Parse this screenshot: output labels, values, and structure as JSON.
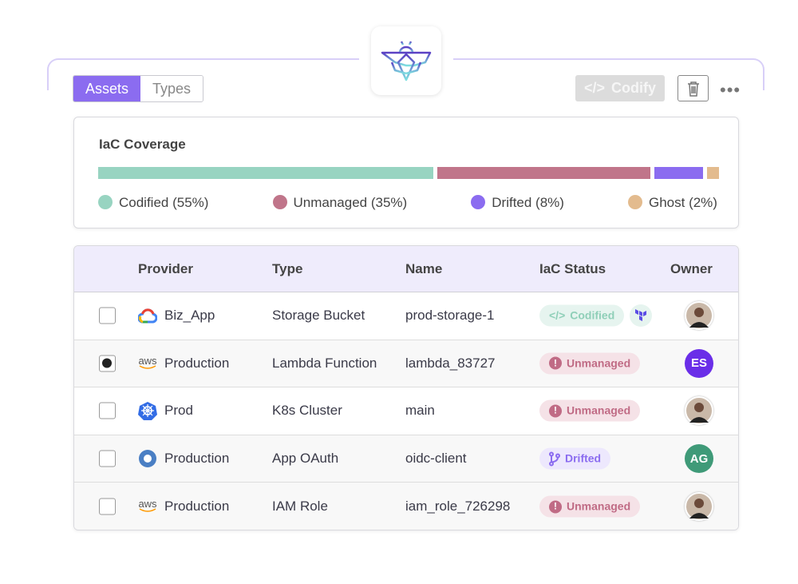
{
  "tabs": {
    "assets": "Assets",
    "types": "Types"
  },
  "toolbar": {
    "codify": "Codify",
    "codify_icon": "</>",
    "more": "•••"
  },
  "coverage": {
    "title": "IaC Coverage",
    "segments": [
      {
        "label": "Codified (55%)",
        "pct": 55,
        "color": "#98d4c1"
      },
      {
        "label": "Unmanaged (35%)",
        "pct": 35,
        "color": "#c0758a"
      },
      {
        "label": "Drifted (8%)",
        "pct": 8,
        "color": "#8b6cf0"
      },
      {
        "label": "Ghost (2%)",
        "pct": 2,
        "color": "#e3bb8e"
      }
    ]
  },
  "table": {
    "headers": {
      "provider": "Provider",
      "type": "Type",
      "name": "Name",
      "status": "IaC Status",
      "owner": "Owner"
    },
    "rows": [
      {
        "provider": "Biz_App",
        "provider_icon": "gcp",
        "type": "Storage Bucket",
        "name": "prod-storage-1",
        "status": "Codified",
        "owner": "photo",
        "checked": false
      },
      {
        "provider": "Production",
        "provider_icon": "aws",
        "type": "Lambda Function",
        "name": "lambda_83727",
        "status": "Unmanaged",
        "owner": "ES",
        "checked": true
      },
      {
        "provider": "Prod",
        "provider_icon": "kubernetes",
        "type": "K8s Cluster",
        "name": "main",
        "status": "Unmanaged",
        "owner": "photo",
        "checked": false
      },
      {
        "provider": "Production",
        "provider_icon": "okta",
        "type": "App OAuth",
        "name": "oidc-client",
        "status": "Drifted",
        "owner": "AG",
        "checked": false
      },
      {
        "provider": "Production",
        "provider_icon": "aws",
        "type": "IAM Role",
        "name": "iam_role_726298",
        "status": "Unmanaged",
        "owner": "photo",
        "checked": false
      }
    ]
  },
  "aws_label": "aws"
}
